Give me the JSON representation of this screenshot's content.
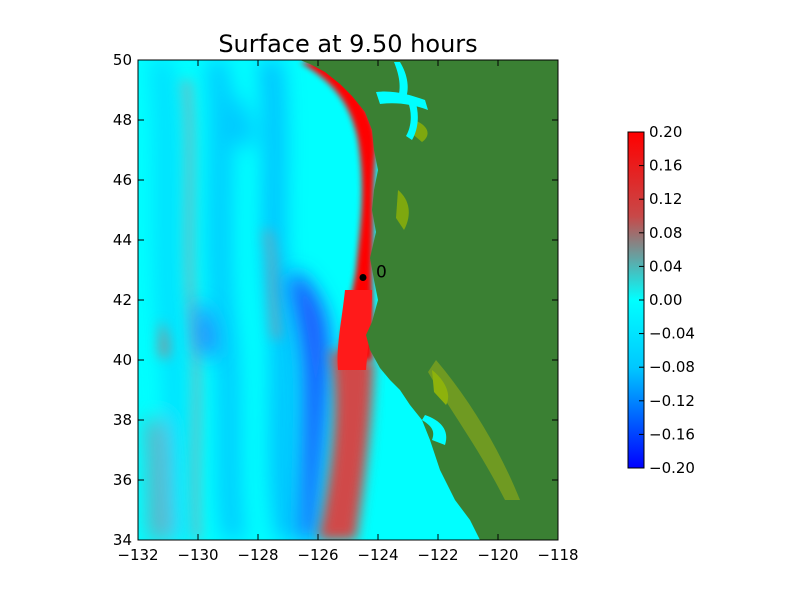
{
  "chart_data": {
    "type": "heatmap",
    "title": "Surface at 9.50 hours",
    "xlabel": "",
    "ylabel": "",
    "xlim": [
      -132,
      -118
    ],
    "ylim": [
      34,
      50
    ],
    "x_ticks": [
      -132,
      -130,
      -128,
      -126,
      -124,
      -122,
      -120,
      -118
    ],
    "y_ticks": [
      34,
      36,
      38,
      40,
      42,
      44,
      46,
      48,
      50
    ],
    "x_tick_labels": [
      "−132",
      "−130",
      "−128",
      "−126",
      "−124",
      "−122",
      "−120",
      "−118"
    ],
    "y_tick_labels": [
      "34",
      "36",
      "38",
      "40",
      "42",
      "44",
      "46",
      "48",
      "50"
    ],
    "colorbar": {
      "range": [
        -0.2,
        0.2
      ],
      "ticks": [
        0.2,
        0.16,
        0.12,
        0.08,
        0.04,
        0.0,
        -0.04,
        -0.08,
        -0.12,
        -0.16,
        -0.2
      ],
      "tick_labels": [
        "0.20",
        "0.16",
        "0.12",
        "0.08",
        "0.04",
        "0.00",
        "−0.04",
        "−0.08",
        "−0.12",
        "−0.16",
        "−0.20"
      ],
      "colors": [
        "#0000ff",
        "#00c8ff",
        "#00ffff",
        "#c84848",
        "#ff0000"
      ]
    },
    "gauge": {
      "lon": -124.5,
      "lat": 42.75,
      "label": "0"
    },
    "colors": {
      "land": "#3a8033",
      "shallow": "#7ea80f",
      "ocean": "#00ffff",
      "wave": "#ff0000",
      "wave_soft": "#d24a4a",
      "trough": "#1e64ff"
    }
  }
}
